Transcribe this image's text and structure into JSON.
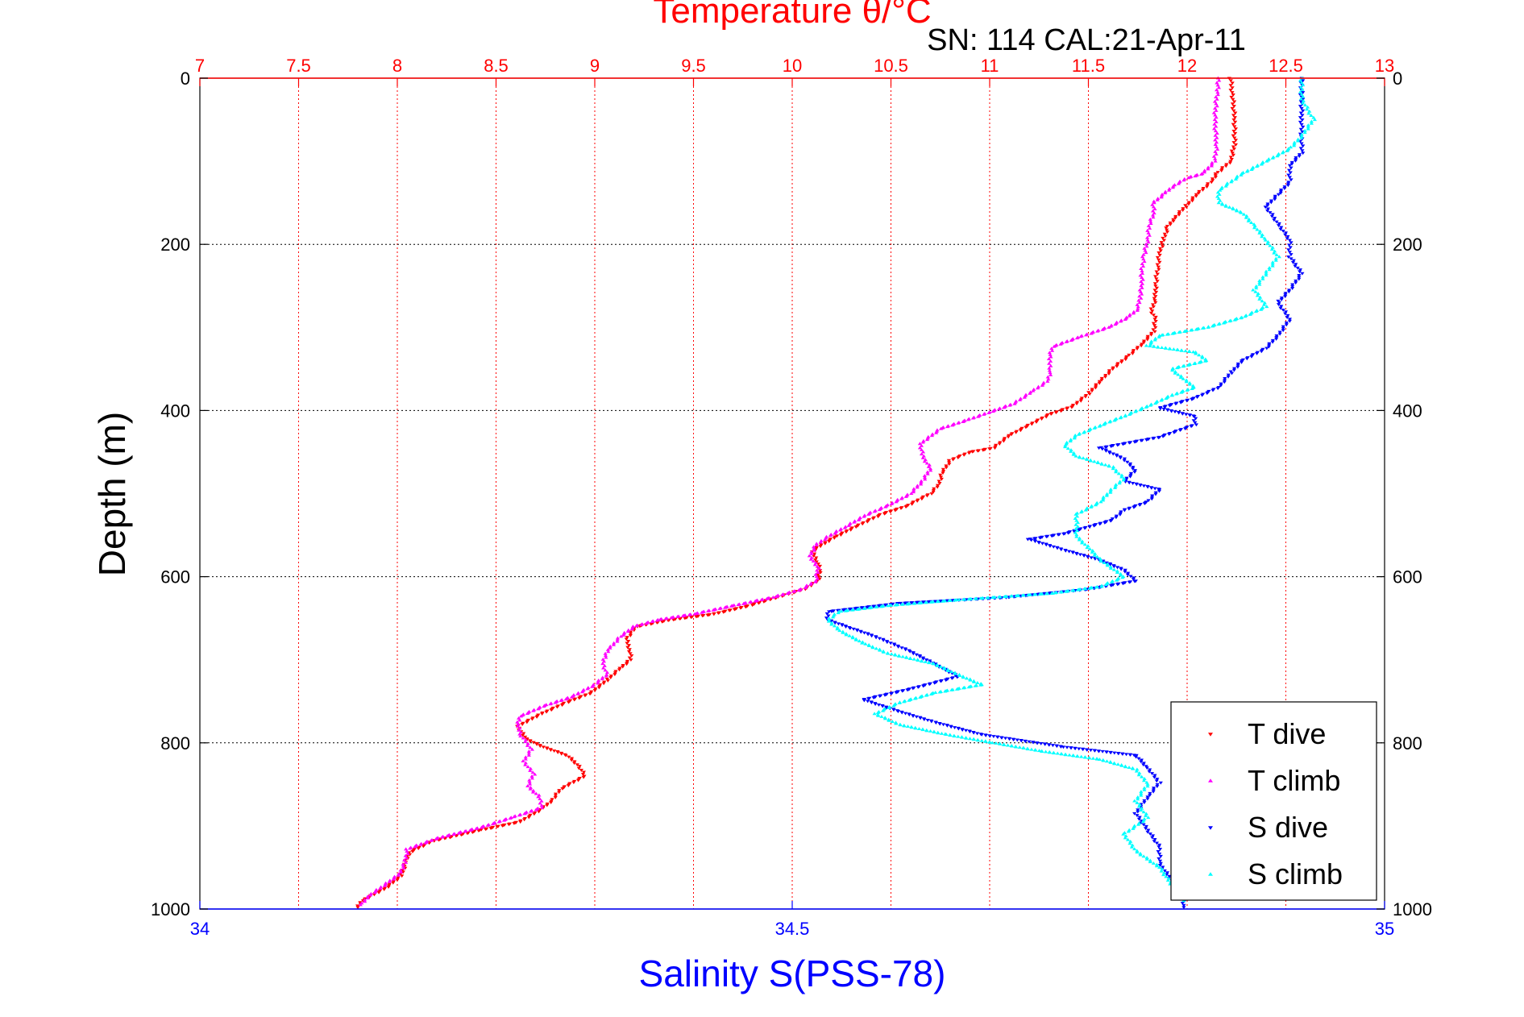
{
  "chart_data": {
    "type": "scatter",
    "title": "Temperature θ/°C",
    "subtitle": "SN: 114  CAL:21-Apr-11",
    "ylabel": "Depth (m)",
    "xlabel": "Salinity S(PSS-78)",
    "top_axis": {
      "label": "Temperature θ/°C",
      "range": [
        7,
        13
      ],
      "ticks": [
        "7",
        "7.5",
        "8",
        "8.5",
        "9",
        "9.5",
        "10",
        "10.5",
        "11",
        "11.5",
        "12",
        "12.5",
        "13"
      ],
      "color": "#ff0000"
    },
    "bottom_axis": {
      "label": "Salinity S(PSS-78)",
      "range": [
        34,
        35
      ],
      "ticks": [
        "34",
        "34.5",
        "35"
      ],
      "color": "#0000ff"
    },
    "y_axis": {
      "label": "Depth (m)",
      "range": [
        0,
        1000
      ],
      "reversed": true,
      "ticks": [
        "0",
        "200",
        "400",
        "600",
        "800",
        "1000"
      ]
    },
    "grid": true,
    "legend_position": "bottom-right",
    "series": [
      {
        "name": "T dive",
        "color": "#ff0000",
        "marker": "triangle-down",
        "axis": "top",
        "points": [
          [
            12.22,
            0
          ],
          [
            12.23,
            20
          ],
          [
            12.24,
            50
          ],
          [
            12.24,
            80
          ],
          [
            12.22,
            100
          ],
          [
            12.15,
            115
          ],
          [
            12.12,
            125
          ],
          [
            12.05,
            140
          ],
          [
            11.99,
            155
          ],
          [
            11.93,
            170
          ],
          [
            11.9,
            180
          ],
          [
            11.88,
            195
          ],
          [
            11.86,
            210
          ],
          [
            11.85,
            230
          ],
          [
            11.84,
            250
          ],
          [
            11.84,
            265
          ],
          [
            11.82,
            280
          ],
          [
            11.84,
            290
          ],
          [
            11.83,
            305
          ],
          [
            11.77,
            320
          ],
          [
            11.7,
            335
          ],
          [
            11.62,
            350
          ],
          [
            11.56,
            365
          ],
          [
            11.5,
            380
          ],
          [
            11.42,
            395
          ],
          [
            11.3,
            405
          ],
          [
            11.18,
            420
          ],
          [
            11.1,
            430
          ],
          [
            11.02,
            445
          ],
          [
            10.9,
            450
          ],
          [
            10.8,
            460
          ],
          [
            10.76,
            475
          ],
          [
            10.74,
            490
          ],
          [
            10.7,
            500
          ],
          [
            10.58,
            515
          ],
          [
            10.45,
            525
          ],
          [
            10.32,
            540
          ],
          [
            10.22,
            552
          ],
          [
            10.16,
            560
          ],
          [
            10.1,
            570
          ],
          [
            10.13,
            582
          ],
          [
            10.14,
            595
          ],
          [
            10.13,
            605
          ],
          [
            10.06,
            615
          ],
          [
            9.92,
            625
          ],
          [
            9.78,
            635
          ],
          [
            9.6,
            645
          ],
          [
            9.38,
            652
          ],
          [
            9.21,
            660
          ],
          [
            9.16,
            675
          ],
          [
            9.18,
            690
          ],
          [
            9.18,
            700
          ],
          [
            9.13,
            710
          ],
          [
            9.06,
            725
          ],
          [
            8.98,
            740
          ],
          [
            8.85,
            752
          ],
          [
            8.73,
            765
          ],
          [
            8.61,
            780
          ],
          [
            8.65,
            795
          ],
          [
            8.74,
            805
          ],
          [
            8.86,
            815
          ],
          [
            8.92,
            828
          ],
          [
            8.95,
            840
          ],
          [
            8.83,
            855
          ],
          [
            8.78,
            870
          ],
          [
            8.73,
            880
          ],
          [
            8.62,
            895
          ],
          [
            8.42,
            905
          ],
          [
            8.18,
            918
          ],
          [
            8.06,
            932
          ],
          [
            8.04,
            946
          ],
          [
            8.02,
            960
          ],
          [
            7.94,
            975
          ],
          [
            7.82,
            990
          ],
          [
            7.8,
            998
          ]
        ]
      },
      {
        "name": "T climb",
        "color": "#ff00ff",
        "marker": "triangle-up",
        "axis": "top",
        "points": [
          [
            12.16,
            0
          ],
          [
            12.15,
            20
          ],
          [
            12.14,
            50
          ],
          [
            12.15,
            80
          ],
          [
            12.14,
            100
          ],
          [
            12.08,
            115
          ],
          [
            12.0,
            120
          ],
          [
            11.93,
            130
          ],
          [
            11.88,
            140
          ],
          [
            11.83,
            150
          ],
          [
            11.83,
            165
          ],
          [
            11.81,
            175
          ],
          [
            11.8,
            195
          ],
          [
            11.78,
            215
          ],
          [
            11.77,
            235
          ],
          [
            11.77,
            250
          ],
          [
            11.76,
            265
          ],
          [
            11.75,
            278
          ],
          [
            11.7,
            288
          ],
          [
            11.6,
            300
          ],
          [
            11.45,
            312
          ],
          [
            11.32,
            323
          ],
          [
            11.3,
            338
          ],
          [
            11.31,
            352
          ],
          [
            11.29,
            365
          ],
          [
            11.21,
            378
          ],
          [
            11.12,
            392
          ],
          [
            11.0,
            402
          ],
          [
            10.88,
            412
          ],
          [
            10.75,
            422
          ],
          [
            10.65,
            440
          ],
          [
            10.66,
            455
          ],
          [
            10.7,
            470
          ],
          [
            10.66,
            485
          ],
          [
            10.6,
            500
          ],
          [
            10.48,
            515
          ],
          [
            10.38,
            525
          ],
          [
            10.27,
            540
          ],
          [
            10.18,
            552
          ],
          [
            10.12,
            562
          ],
          [
            10.09,
            575
          ],
          [
            10.13,
            590
          ],
          [
            10.12,
            605
          ],
          [
            10.05,
            615
          ],
          [
            9.9,
            625
          ],
          [
            9.7,
            635
          ],
          [
            9.5,
            645
          ],
          [
            9.32,
            652
          ],
          [
            9.2,
            660
          ],
          [
            9.13,
            672
          ],
          [
            9.07,
            688
          ],
          [
            9.04,
            702
          ],
          [
            9.06,
            718
          ],
          [
            9.0,
            730
          ],
          [
            8.88,
            745
          ],
          [
            8.75,
            755
          ],
          [
            8.62,
            768
          ],
          [
            8.61,
            780
          ],
          [
            8.63,
            792
          ],
          [
            8.68,
            808
          ],
          [
            8.64,
            822
          ],
          [
            8.69,
            838
          ],
          [
            8.66,
            852
          ],
          [
            8.72,
            865
          ],
          [
            8.73,
            878
          ],
          [
            8.58,
            890
          ],
          [
            8.42,
            902
          ],
          [
            8.2,
            915
          ],
          [
            8.05,
            928
          ],
          [
            8.04,
            944
          ],
          [
            8.01,
            958
          ],
          [
            7.93,
            972
          ],
          [
            7.85,
            985
          ],
          [
            7.82,
            995
          ]
        ]
      },
      {
        "name": "S dive",
        "color": "#0000ff",
        "marker": "triangle-down",
        "axis": "bottom",
        "points": [
          [
            34.93,
            0
          ],
          [
            34.93,
            20
          ],
          [
            34.93,
            50
          ],
          [
            34.93,
            70
          ],
          [
            34.93,
            90
          ],
          [
            34.92,
            105
          ],
          [
            34.92,
            125
          ],
          [
            34.91,
            140
          ],
          [
            34.9,
            155
          ],
          [
            34.91,
            175
          ],
          [
            34.92,
            195
          ],
          [
            34.92,
            215
          ],
          [
            34.93,
            235
          ],
          [
            34.92,
            255
          ],
          [
            34.91,
            270
          ],
          [
            34.92,
            290
          ],
          [
            34.91,
            310
          ],
          [
            34.9,
            325
          ],
          [
            34.88,
            340
          ],
          [
            34.87,
            355
          ],
          [
            34.86,
            372
          ],
          [
            34.84,
            385
          ],
          [
            34.81,
            397
          ],
          [
            34.84,
            407
          ],
          [
            34.84,
            417
          ],
          [
            34.81,
            432
          ],
          [
            34.76,
            445
          ],
          [
            34.78,
            458
          ],
          [
            34.79,
            472
          ],
          [
            34.78,
            485
          ],
          [
            34.81,
            495
          ],
          [
            34.8,
            510
          ],
          [
            34.78,
            520
          ],
          [
            34.77,
            532
          ],
          [
            34.75,
            540
          ],
          [
            34.73,
            548
          ],
          [
            34.7,
            555
          ],
          [
            34.73,
            568
          ],
          [
            34.76,
            580
          ],
          [
            34.78,
            592
          ],
          [
            34.79,
            605
          ],
          [
            34.75,
            615
          ],
          [
            34.68,
            625
          ],
          [
            34.59,
            632
          ],
          [
            34.53,
            642
          ],
          [
            34.53,
            652
          ],
          [
            34.55,
            662
          ],
          [
            34.57,
            672
          ],
          [
            34.6,
            690
          ],
          [
            34.62,
            705
          ],
          [
            34.64,
            720
          ],
          [
            34.6,
            735
          ],
          [
            34.56,
            748
          ],
          [
            34.59,
            762
          ],
          [
            34.62,
            775
          ],
          [
            34.66,
            790
          ],
          [
            34.73,
            805
          ],
          [
            34.79,
            815
          ],
          [
            34.8,
            830
          ],
          [
            34.81,
            848
          ],
          [
            34.8,
            865
          ],
          [
            34.79,
            885
          ],
          [
            34.8,
            905
          ],
          [
            34.81,
            925
          ],
          [
            34.81,
            945
          ],
          [
            34.82,
            965
          ],
          [
            34.83,
            985
          ],
          [
            34.83,
            998
          ]
        ]
      },
      {
        "name": "S climb",
        "color": "#00ffff",
        "marker": "triangle-up",
        "axis": "bottom",
        "points": [
          [
            34.93,
            0
          ],
          [
            34.93,
            25
          ],
          [
            34.94,
            50
          ],
          [
            34.93,
            70
          ],
          [
            34.92,
            85
          ],
          [
            34.9,
            100
          ],
          [
            34.88,
            115
          ],
          [
            34.86,
            135
          ],
          [
            34.86,
            150
          ],
          [
            34.88,
            162
          ],
          [
            34.89,
            178
          ],
          [
            34.9,
            195
          ],
          [
            34.91,
            215
          ],
          [
            34.9,
            235
          ],
          [
            34.89,
            255
          ],
          [
            34.9,
            275
          ],
          [
            34.88,
            288
          ],
          [
            34.85,
            300
          ],
          [
            34.81,
            310
          ],
          [
            34.8,
            322
          ],
          [
            34.84,
            330
          ],
          [
            34.85,
            340
          ],
          [
            34.82,
            350
          ],
          [
            34.83,
            362
          ],
          [
            34.84,
            372
          ],
          [
            34.82,
            382
          ],
          [
            34.8,
            395
          ],
          [
            34.78,
            407
          ],
          [
            34.76,
            418
          ],
          [
            34.74,
            430
          ],
          [
            34.73,
            442
          ],
          [
            34.74,
            455
          ],
          [
            34.77,
            468
          ],
          [
            34.78,
            482
          ],
          [
            34.77,
            495
          ],
          [
            34.76,
            510
          ],
          [
            34.74,
            525
          ],
          [
            34.74,
            540
          ],
          [
            34.74,
            552
          ],
          [
            34.75,
            565
          ],
          [
            34.76,
            580
          ],
          [
            34.78,
            600
          ],
          [
            34.76,
            612
          ],
          [
            34.72,
            620
          ],
          [
            34.64,
            628
          ],
          [
            34.58,
            635
          ],
          [
            34.54,
            642
          ],
          [
            34.53,
            652
          ],
          [
            34.54,
            665
          ],
          [
            34.56,
            680
          ],
          [
            34.58,
            692
          ],
          [
            34.62,
            705
          ],
          [
            34.64,
            718
          ],
          [
            34.66,
            730
          ],
          [
            34.62,
            740
          ],
          [
            34.59,
            752
          ],
          [
            34.57,
            765
          ],
          [
            34.59,
            778
          ],
          [
            34.63,
            790
          ],
          [
            34.67,
            800
          ],
          [
            34.71,
            810
          ],
          [
            34.76,
            820
          ],
          [
            34.79,
            832
          ],
          [
            34.8,
            850
          ],
          [
            34.79,
            870
          ],
          [
            34.8,
            890
          ],
          [
            34.78,
            910
          ],
          [
            34.79,
            930
          ],
          [
            34.81,
            950
          ],
          [
            34.82,
            970
          ],
          [
            34.83,
            990
          ]
        ]
      }
    ]
  }
}
